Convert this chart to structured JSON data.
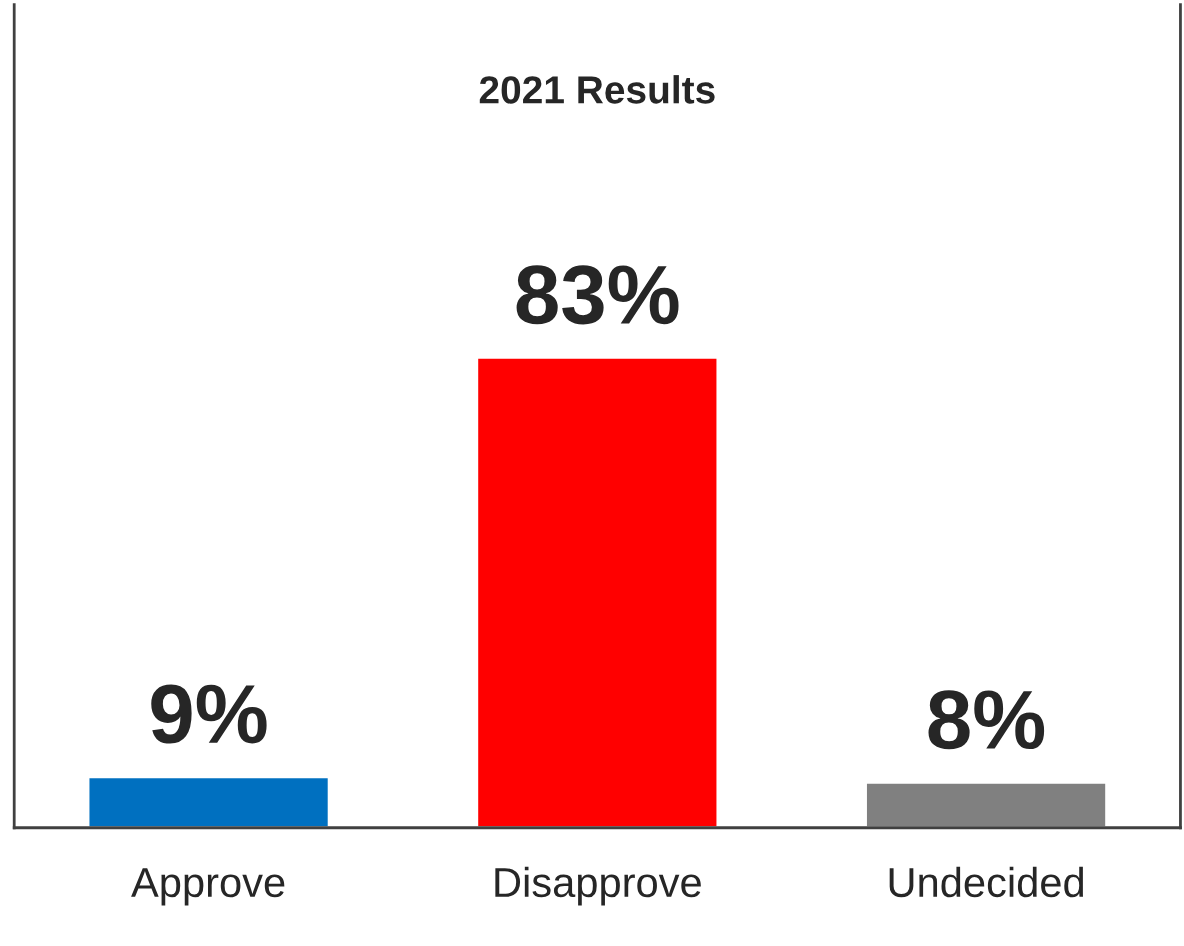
{
  "chart_data": {
    "type": "bar",
    "title": "2021 Results",
    "categories": [
      "Approve",
      "Disapprove",
      "Undecided"
    ],
    "values": [
      9,
      83,
      8
    ],
    "colors": [
      "#0070c0",
      "#ff0000",
      "#808080"
    ],
    "value_labels": [
      "9%",
      "83%",
      "8%"
    ],
    "grid": false,
    "legend": false
  }
}
